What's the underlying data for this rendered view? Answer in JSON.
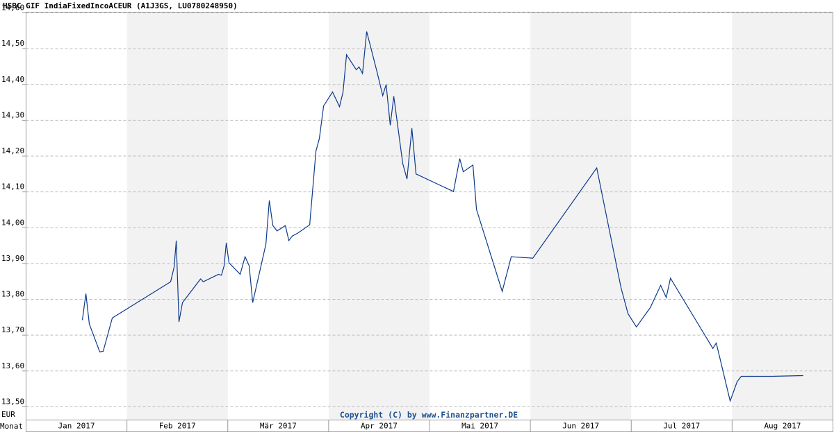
{
  "chart_data": {
    "type": "line",
    "title": "HSBC GIF IndiaFixedIncoACEUR (A1J3GS, LU0780248950)",
    "y_unit_label": "EUR",
    "x_axis_label": "Monat",
    "annotation": "Copyright (C) by www.Finanzpartner.DE",
    "xlim": [
      0,
      8
    ],
    "xticks": [
      {
        "value": 0.5,
        "label": "Jan 2017"
      },
      {
        "value": 1.5,
        "label": "Feb 2017"
      },
      {
        "value": 2.5,
        "label": "Mär 2017"
      },
      {
        "value": 3.5,
        "label": "Apr 2017"
      },
      {
        "value": 4.5,
        "label": "Mai 2017"
      },
      {
        "value": 5.5,
        "label": "Jun 2017"
      },
      {
        "value": 6.5,
        "label": "Jul 2017"
      },
      {
        "value": 7.5,
        "label": "Aug 2017"
      }
    ],
    "ylim": [
      13.463,
      14.602
    ],
    "yticks": [
      {
        "value": 13.5,
        "label": "13,50"
      },
      {
        "value": 13.6,
        "label": "13,60"
      },
      {
        "value": 13.7,
        "label": "13,70"
      },
      {
        "value": 13.8,
        "label": "13,80"
      },
      {
        "value": 13.9,
        "label": "13,90"
      },
      {
        "value": 14.0,
        "label": "14,00"
      },
      {
        "value": 14.1,
        "label": "14,10"
      },
      {
        "value": 14.2,
        "label": "14,20"
      },
      {
        "value": 14.3,
        "label": "14,30"
      },
      {
        "value": 14.4,
        "label": "14,40"
      },
      {
        "value": 14.5,
        "label": "14,50"
      },
      {
        "value": 14.6,
        "label": "14,60"
      }
    ],
    "grid": true,
    "shaded_bands": true,
    "band_color": "#f2f2f2",
    "x": [
      0.558,
      0.593,
      0.627,
      0.731,
      0.765,
      0.855,
      1.433,
      1.468,
      1.489,
      1.516,
      1.551,
      1.73,
      1.757,
      1.909,
      1.937,
      1.964,
      1.985,
      2.012,
      2.123,
      2.171,
      2.212,
      2.247,
      2.378,
      2.412,
      2.447,
      2.488,
      2.571,
      2.605,
      2.64,
      2.695,
      2.812,
      2.874,
      2.908,
      2.95,
      3.039,
      3.108,
      3.143,
      3.177,
      3.274,
      3.301,
      3.336,
      3.377,
      3.48,
      3.536,
      3.57,
      3.611,
      3.646,
      3.735,
      3.777,
      3.825,
      3.866,
      4.238,
      4.3,
      4.335,
      4.431,
      4.466,
      4.721,
      4.81,
      5.024,
      5.658,
      5.899,
      5.968,
      6.051,
      6.189,
      6.292,
      6.347,
      6.389,
      6.809,
      6.843,
      6.981,
      7.05,
      7.091,
      7.395,
      7.705
    ],
    "series": [
      {
        "color": "#0b3a8c",
        "values": [
          13.742,
          13.816,
          13.731,
          13.653,
          13.655,
          13.748,
          13.849,
          13.89,
          13.964,
          13.737,
          13.791,
          13.857,
          13.849,
          13.87,
          13.867,
          13.894,
          13.958,
          13.902,
          13.87,
          13.919,
          13.894,
          13.791,
          13.954,
          14.076,
          14.006,
          13.991,
          14.006,
          13.964,
          13.977,
          13.985,
          14.008,
          14.214,
          14.249,
          14.34,
          14.379,
          14.338,
          14.379,
          14.483,
          14.441,
          14.449,
          14.431,
          14.548,
          14.435,
          14.369,
          14.4,
          14.286,
          14.367,
          14.179,
          14.136,
          14.278,
          14.15,
          14.101,
          14.193,
          14.156,
          14.175,
          14.051,
          13.822,
          13.919,
          13.915,
          14.167,
          13.832,
          13.76,
          13.723,
          13.777,
          13.839,
          13.805,
          13.859,
          13.663,
          13.678,
          13.516,
          13.57,
          13.585,
          13.585,
          13.587
        ]
      }
    ]
  }
}
